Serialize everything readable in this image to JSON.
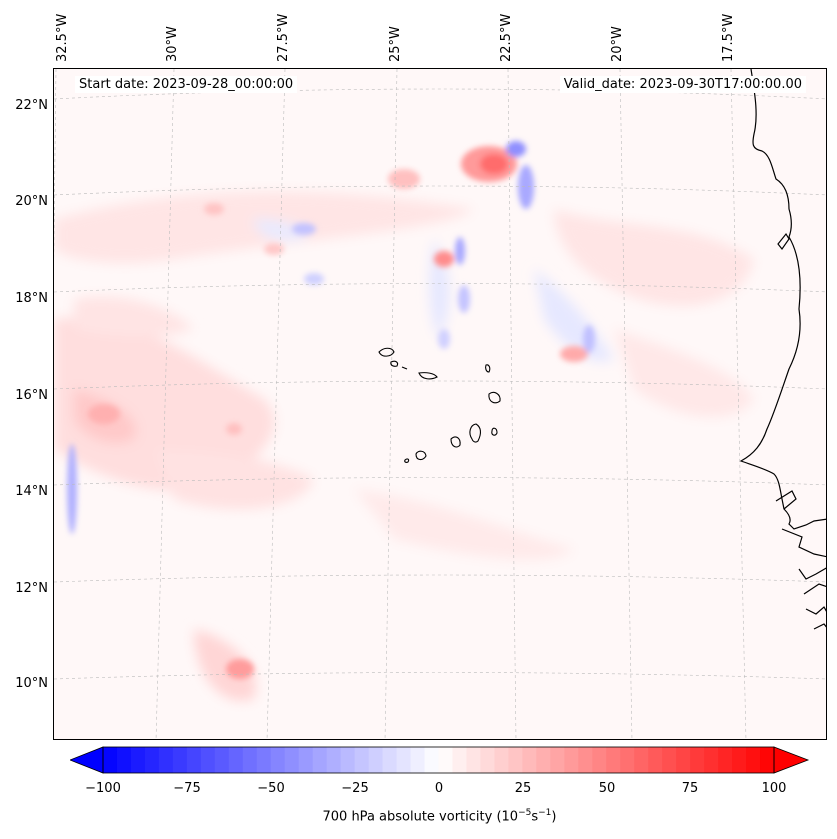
{
  "title_left": "Start date: 2023-09-28_00:00:00",
  "title_right": "Valid_date: 2023-09-30T17:00:00.00",
  "lon_labels": [
    "32.5°W",
    "30°W",
    "27.5°W",
    "25°W",
    "22.5°W",
    "20°W",
    "17.5°W"
  ],
  "lat_labels": [
    "22°N",
    "20°N",
    "18°N",
    "16°N",
    "14°N",
    "12°N",
    "10°N"
  ],
  "colorbar": {
    "label_main": "700 hPa absolute vorticity (10",
    "label_exp1": "−5",
    "label_mid": "s",
    "label_exp2": "−1",
    "label_end": ")",
    "ticks": [
      "−100",
      "−75",
      "−50",
      "−25",
      "0",
      "25",
      "50",
      "75",
      "100"
    ],
    "min": -100,
    "max": 100,
    "levels": 48,
    "color_neg": "#0000ff",
    "color_pos": "#ff0000"
  },
  "colors": {
    "coast": "#000000",
    "grid": "#bbbbbb",
    "background": "#fff8f8"
  }
}
